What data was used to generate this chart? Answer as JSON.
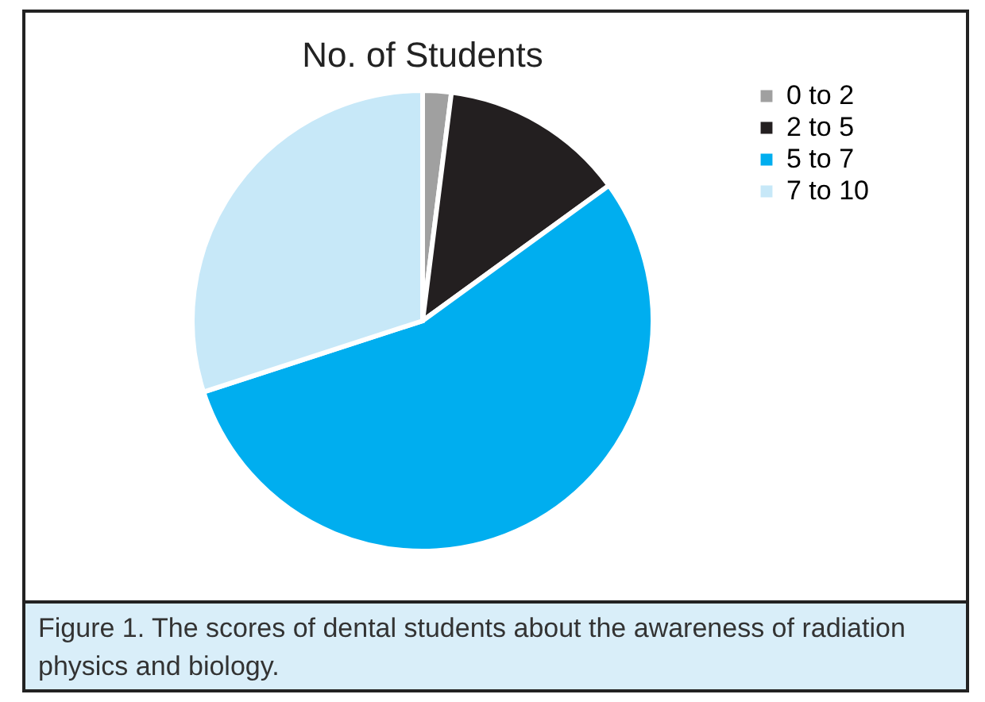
{
  "chart_data": {
    "type": "pie",
    "title": "No. of Students",
    "categories": [
      "0 to 2",
      "2 to 5",
      "5 to 7",
      "7 to 10"
    ],
    "values": [
      2,
      13,
      55,
      30
    ],
    "colors": [
      "#a0a0a0",
      "#231f20",
      "#00aeef",
      "#c7e8f8"
    ],
    "legend": "right",
    "annotations": [
      "Figure 1. The scores of dental students about the awareness of radiation physics and biology."
    ]
  }
}
